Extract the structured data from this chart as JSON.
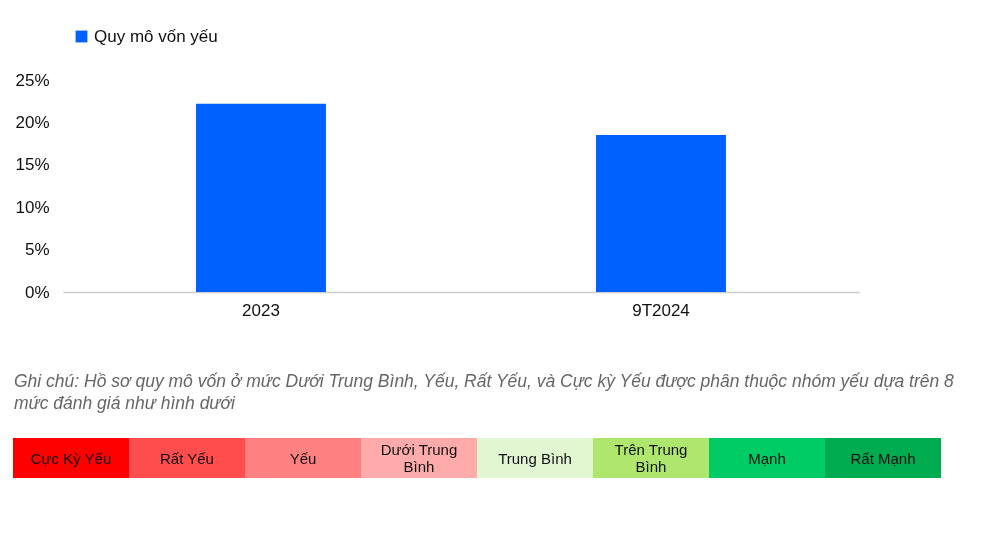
{
  "chart_data": {
    "type": "bar",
    "categories": [
      "2023",
      "9T2024"
    ],
    "series": [
      {
        "name": "Quy mô vốn yếu",
        "color": "#0061ff",
        "values": [
          22.2,
          18.5
        ]
      }
    ],
    "ylim": [
      0,
      25
    ],
    "yticks": [
      {
        "value": 0,
        "label": "0%"
      },
      {
        "value": 5,
        "label": "5%"
      },
      {
        "value": 10,
        "label": "10%"
      },
      {
        "value": 15,
        "label": "15%"
      },
      {
        "value": 20,
        "label": "20%"
      },
      {
        "value": 25,
        "label": "25%"
      }
    ],
    "grid": false,
    "legend": "top",
    "annotations": [
      "Ghi chú: Hồ sơ quy mô vốn ở mức Dưới Trung Bình, Yếu, Rất Yếu, và Cực kỳ Yếu được phân thuộc nhóm yếu dựa trên 8 mức đánh giá như hình dưới",
      "Cực Kỳ Yếu",
      "Rất Yếu",
      "Yếu",
      "Dưới Trung Bình",
      "Trung Bình",
      "Trên Trung Bình",
      "Mạnh",
      "Rất Mạnh"
    ]
  }
}
